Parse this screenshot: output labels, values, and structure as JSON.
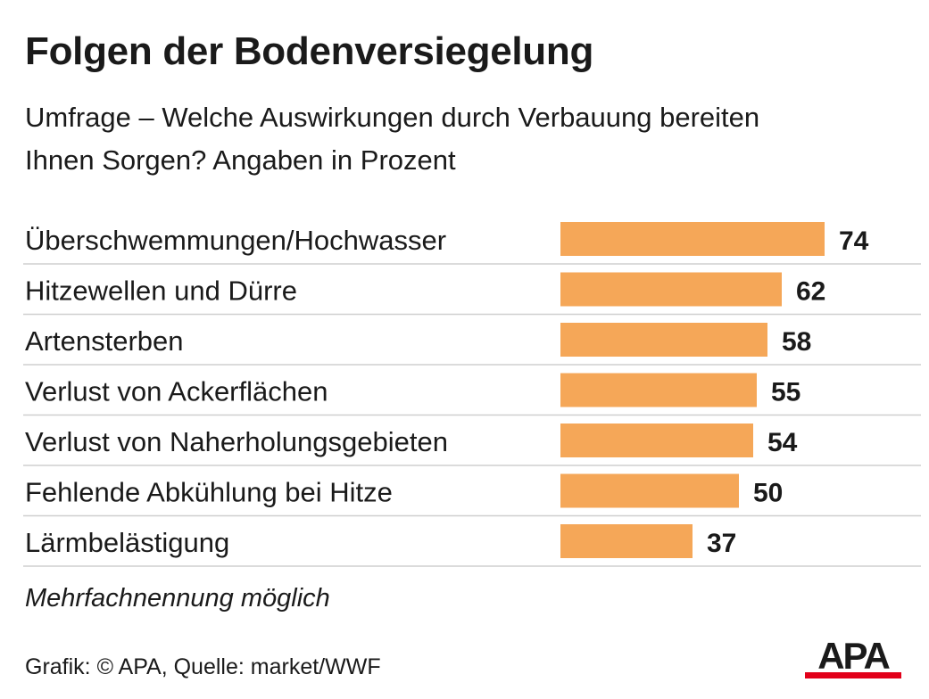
{
  "title": "Folgen der Bodenversiegelung",
  "subtitle": "Umfrage – Welche Auswirkungen durch Verbauung bereiten Ihnen Sorgen? Angaben in Prozent",
  "note": "Mehrfachnennung möglich",
  "source": "Grafik: © APA, Quelle: market/WWF",
  "logo_text": "APA",
  "colors": {
    "bar": "#F5A758",
    "rule": "#cfcfcf",
    "logo_red": "#E2001A",
    "text": "#1a1a1a"
  },
  "chart_data": {
    "type": "bar",
    "orientation": "horizontal",
    "categories": [
      "Überschwemmungen/Hochwasser",
      "Hitzewellen und Dürre",
      "Artensterben",
      "Verlust von Ackerflächen",
      "Verlust von Naherholungsgebieten",
      "Fehlende Abkühlung bei Hitze",
      "Lärmbelästigung"
    ],
    "values": [
      74,
      62,
      58,
      55,
      54,
      50,
      37
    ],
    "title": "Folgen der Bodenversiegelung",
    "xlabel": "",
    "ylabel": "",
    "unit": "Prozent",
    "xlim": [
      0,
      100
    ],
    "grid": false,
    "legend": "none"
  }
}
